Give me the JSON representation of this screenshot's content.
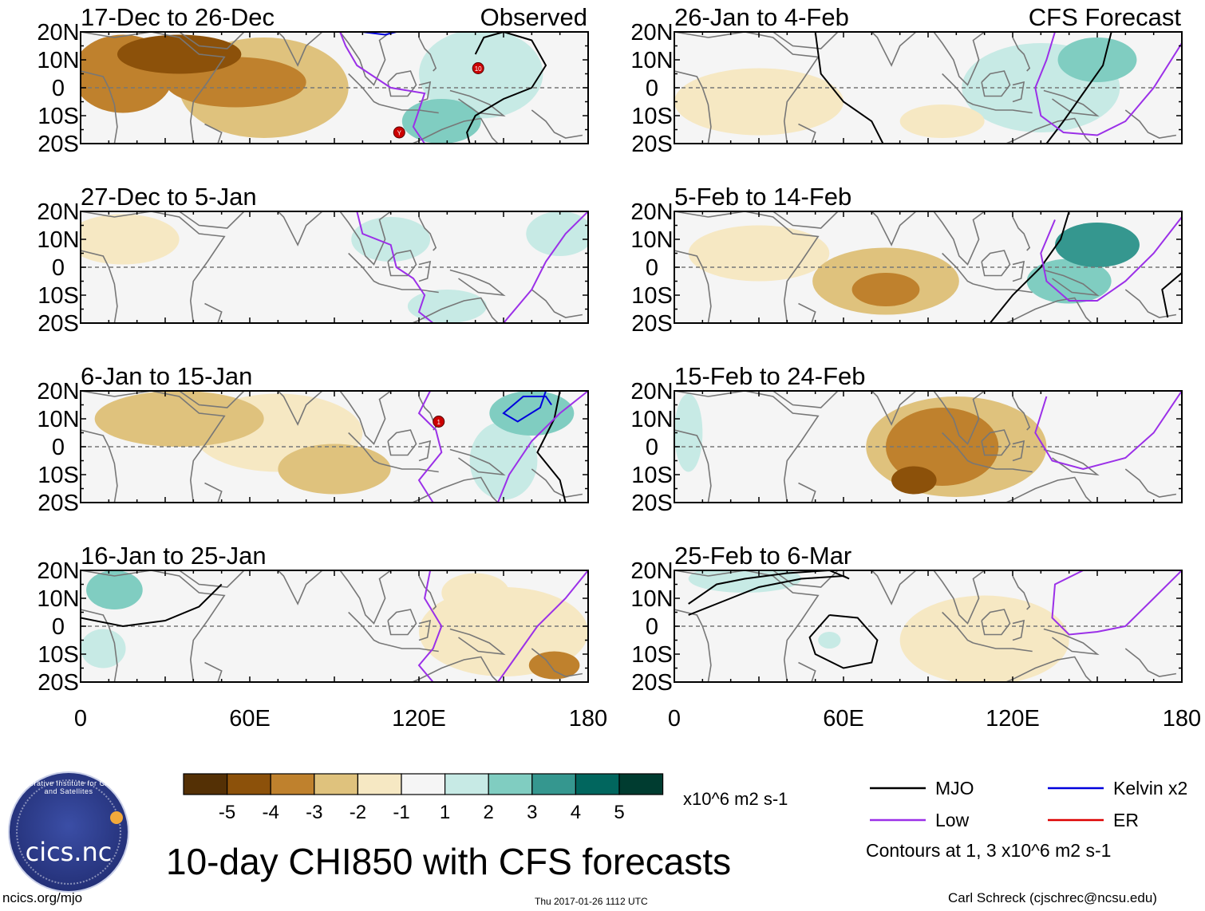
{
  "chart_data": {
    "type": "heatmap",
    "title": "10-day CHI850 with CFS forecasts",
    "variable": "CHI850",
    "units": "x10^6 m2 s-1",
    "lat_ticks": [
      "20N",
      "10N",
      "0",
      "10S",
      "20S"
    ],
    "lon_ticks": [
      "0",
      "60E",
      "120E",
      "180"
    ],
    "lat_range": [
      -20,
      20
    ],
    "lon_range": [
      0,
      180
    ],
    "panels": [
      {
        "period": "17-Dec to 26-Dec",
        "source": "Observed",
        "label": "Observed",
        "blobs": [
          {
            "lon": 35,
            "lat": 12,
            "value": -4.0,
            "rlon": 22,
            "rlat": 7
          },
          {
            "lon": 15,
            "lat": 5,
            "value": -3.0,
            "rlon": 18,
            "rlat": 14
          },
          {
            "lon": 55,
            "lat": 2,
            "value": -3.0,
            "rlon": 25,
            "rlat": 9
          },
          {
            "lon": 65,
            "lat": 0,
            "value": -2.0,
            "rlon": 30,
            "rlat": 18
          },
          {
            "lon": 142,
            "lat": 5,
            "value": 1.5,
            "rlon": 22,
            "rlat": 16
          },
          {
            "lon": 128,
            "lat": -12,
            "value": 2.5,
            "rlon": 14,
            "rlat": 8
          }
        ],
        "contours": [
          {
            "kind": "MJO",
            "lon": [
              140,
              143,
              150,
              160,
              165,
              160,
              150,
              140,
              137,
              138
            ],
            "lat": [
              12,
              18,
              20,
              17,
              8,
              0,
              -4,
              -10,
              -16,
              -20
            ]
          },
          {
            "kind": "Low",
            "lon": [
              92,
              94,
              98,
              110,
              122,
              120,
              118,
              122
            ],
            "lat": [
              20,
              15,
              8,
              0,
              -2,
              -8,
              -14,
              -20
            ]
          },
          {
            "kind": "Kelvin",
            "lon": [
              100,
              108,
              112
            ],
            "lat": [
              20,
              19,
              20
            ]
          }
        ],
        "storms": [
          {
            "lon": 141,
            "lat": 7,
            "label": "10"
          },
          {
            "lon": 113,
            "lat": -16,
            "label": "Y"
          }
        ]
      },
      {
        "period": "27-Dec to 5-Jan",
        "source": "Observed",
        "label": "",
        "blobs": [
          {
            "lon": 15,
            "lat": 10,
            "value": -1.5,
            "rlon": 20,
            "rlat": 9
          },
          {
            "lon": 110,
            "lat": 10,
            "value": 1.5,
            "rlon": 14,
            "rlat": 8
          },
          {
            "lon": 130,
            "lat": -14,
            "value": 1.5,
            "rlon": 14,
            "rlat": 6
          },
          {
            "lon": 170,
            "lat": 12,
            "value": 1.5,
            "rlon": 12,
            "rlat": 8
          }
        ],
        "contours": [
          {
            "kind": "Low",
            "lon": [
              98,
              100,
              110,
              112,
              118,
              122,
              120,
              125
            ],
            "lat": [
              20,
              12,
              8,
              0,
              -4,
              -10,
              -16,
              -20
            ]
          },
          {
            "kind": "Low",
            "lon": [
              180,
              172,
              165,
              160,
              150
            ],
            "lat": [
              20,
              12,
              2,
              -8,
              -20
            ]
          }
        ],
        "storms": []
      },
      {
        "period": "6-Jan to 15-Jan",
        "source": "Observed",
        "label": "",
        "blobs": [
          {
            "lon": 35,
            "lat": 10,
            "value": -2.0,
            "rlon": 30,
            "rlat": 10
          },
          {
            "lon": 70,
            "lat": 5,
            "value": -1.5,
            "rlon": 30,
            "rlat": 14
          },
          {
            "lon": 90,
            "lat": -8,
            "value": -2.0,
            "rlon": 20,
            "rlat": 9
          },
          {
            "lon": 160,
            "lat": 12,
            "value": 2.5,
            "rlon": 15,
            "rlat": 8
          },
          {
            "lon": 150,
            "lat": -5,
            "value": 1.5,
            "rlon": 12,
            "rlat": 14
          }
        ],
        "contours": [
          {
            "kind": "Kelvin",
            "lon": [
              165,
              163,
              155,
              150,
              157,
              165,
              167
            ],
            "lat": [
              20,
              14,
              9,
              12,
              18,
              18,
              15
            ]
          },
          {
            "kind": "MJO",
            "lon": [
              170,
              168,
              162,
              170,
              172
            ],
            "lat": [
              20,
              10,
              -2,
              -12,
              -20
            ]
          },
          {
            "kind": "Low",
            "lon": [
              124,
              120,
              126,
              128,
              120,
              125
            ],
            "lat": [
              20,
              12,
              6,
              -2,
              -12,
              -20
            ]
          },
          {
            "kind": "Low",
            "lon": [
              180,
              170,
              160,
              152,
              148
            ],
            "lat": [
              20,
              12,
              2,
              -10,
              -20
            ]
          }
        ],
        "storms": [
          {
            "lon": 127,
            "lat": 9,
            "label": "1"
          }
        ]
      },
      {
        "period": "16-Jan to 25-Jan",
        "source": "Observed",
        "label": "",
        "blobs": [
          {
            "lon": 12,
            "lat": 13,
            "value": 2.5,
            "rlon": 10,
            "rlat": 7
          },
          {
            "lon": 8,
            "lat": -8,
            "value": 1.5,
            "rlon": 8,
            "rlat": 7
          },
          {
            "lon": 150,
            "lat": -2,
            "value": -1.5,
            "rlon": 30,
            "rlat": 16
          },
          {
            "lon": 168,
            "lat": -14,
            "value": -3.0,
            "rlon": 9,
            "rlat": 5
          },
          {
            "lon": 140,
            "lat": 12,
            "value": -1.5,
            "rlon": 12,
            "rlat": 7
          }
        ],
        "contours": [
          {
            "kind": "MJO",
            "lon": [
              0,
              15,
              30,
              42,
              50
            ],
            "lat": [
              3,
              0,
              2,
              7,
              15
            ]
          },
          {
            "kind": "Low",
            "lon": [
              124,
              122,
              128,
              125,
              120,
              125
            ],
            "lat": [
              20,
              10,
              0,
              -8,
              -14,
              -20
            ]
          },
          {
            "kind": "Low",
            "lon": [
              180,
              172,
              162,
              155,
              148
            ],
            "lat": [
              20,
              10,
              0,
              -10,
              -20
            ]
          }
        ],
        "storms": []
      },
      {
        "period": "26-Jan to 4-Feb",
        "source": "CFS Forecast",
        "label": "CFS Forecast",
        "blobs": [
          {
            "lon": 150,
            "lat": 10,
            "value": 2.5,
            "rlon": 14,
            "rlat": 8
          },
          {
            "lon": 130,
            "lat": 0,
            "value": 1.5,
            "rlon": 28,
            "rlat": 16
          },
          {
            "lon": 30,
            "lat": -5,
            "value": -1.5,
            "rlon": 30,
            "rlat": 12
          },
          {
            "lon": 95,
            "lat": -12,
            "value": -1.5,
            "rlon": 15,
            "rlat": 6
          }
        ],
        "contours": [
          {
            "kind": "MJO",
            "lon": [
              50,
              52,
              60,
              70,
              74
            ],
            "lat": [
              20,
              5,
              -5,
              -12,
              -20
            ]
          },
          {
            "kind": "MJO",
            "lon": [
              155,
              152,
              145,
              138,
              132
            ],
            "lat": [
              20,
              8,
              -2,
              -12,
              -20
            ]
          },
          {
            "kind": "Low",
            "lon": [
              135,
              132,
              128,
              130,
              138,
              150,
              160,
              170,
              180
            ],
            "lat": [
              20,
              10,
              0,
              -10,
              -16,
              -17,
              -12,
              0,
              16
            ]
          }
        ],
        "storms": []
      },
      {
        "period": "5-Feb to 14-Feb",
        "source": "CFS Forecast",
        "label": "",
        "blobs": [
          {
            "lon": 75,
            "lat": -8,
            "value": -3.0,
            "rlon": 12,
            "rlat": 6
          },
          {
            "lon": 75,
            "lat": -5,
            "value": -2.0,
            "rlon": 26,
            "rlat": 12
          },
          {
            "lon": 30,
            "lat": 5,
            "value": -1.5,
            "rlon": 25,
            "rlat": 10
          },
          {
            "lon": 150,
            "lat": 8,
            "value": 3.0,
            "rlon": 15,
            "rlat": 8
          },
          {
            "lon": 140,
            "lat": -5,
            "value": 2.0,
            "rlon": 15,
            "rlat": 8
          }
        ],
        "contours": [
          {
            "kind": "MJO",
            "lon": [
              140,
              137,
              130,
              120,
              112
            ],
            "lat": [
              20,
              10,
              0,
              -10,
              -20
            ]
          },
          {
            "kind": "MJO",
            "lon": [
              180,
              173,
              175
            ],
            "lat": [
              -2,
              -8,
              -18
            ]
          },
          {
            "kind": "Low",
            "lon": [
              135,
              130,
              132,
              140,
              150,
              160,
              170,
              180
            ],
            "lat": [
              17,
              5,
              -5,
              -12,
              -12,
              -5,
              5,
              18
            ]
          }
        ],
        "storms": []
      },
      {
        "period": "15-Feb to 24-Feb",
        "source": "CFS Forecast",
        "label": "",
        "blobs": [
          {
            "lon": 85,
            "lat": -12,
            "value": -4.0,
            "rlon": 8,
            "rlat": 5
          },
          {
            "lon": 95,
            "lat": 0,
            "value": -3.0,
            "rlon": 20,
            "rlat": 14
          },
          {
            "lon": 100,
            "lat": 0,
            "value": -2.0,
            "rlon": 32,
            "rlat": 18
          },
          {
            "lon": 5,
            "lat": 5,
            "value": 1.5,
            "rlon": 5,
            "rlat": 14
          }
        ],
        "contours": [
          {
            "kind": "Low",
            "lon": [
              132,
              128,
              134,
              145,
              160,
              170,
              180
            ],
            "lat": [
              18,
              5,
              -5,
              -8,
              -4,
              5,
              20
            ]
          }
        ],
        "storms": []
      },
      {
        "period": "25-Feb to 6-Mar",
        "source": "CFS Forecast",
        "label": "",
        "blobs": [
          {
            "lon": 25,
            "lat": 17,
            "value": 1.5,
            "rlon": 20,
            "rlat": 5
          },
          {
            "lon": 110,
            "lat": -5,
            "value": -1.5,
            "rlon": 30,
            "rlat": 16
          },
          {
            "lon": 55,
            "lat": -5,
            "value": 1.5,
            "rlon": 4,
            "rlat": 3
          }
        ],
        "contours": [
          {
            "kind": "MJO",
            "lon": [
              5,
              15,
              25,
              40,
              55,
              62,
              60,
              45,
              30,
              15,
              5
            ],
            "lat": [
              8,
              15,
              17,
              19,
              20,
              17,
              18,
              17,
              14,
              8,
              4
            ]
          },
          {
            "kind": "MJO",
            "lon": [
              55,
              65,
              72,
              70,
              60,
              50,
              48,
              55
            ],
            "lat": [
              4,
              3,
              -5,
              -13,
              -15,
              -10,
              -4,
              4
            ]
          },
          {
            "kind": "Low",
            "lon": [
              145,
              135,
              134,
              140,
              150,
              160,
              170,
              180
            ],
            "lat": [
              20,
              15,
              3,
              -3,
              -2,
              0,
              10,
              20
            ]
          }
        ],
        "storms": []
      }
    ],
    "colorbar": {
      "levels": [
        "-5",
        "-4",
        "-3",
        "-2",
        "-1",
        "1",
        "2",
        "3",
        "4",
        "5"
      ],
      "colors": [
        "#543005",
        "#8c510a",
        "#bf812d",
        "#dfc27d",
        "#f6e8c3",
        "#f5f5f5",
        "#c7eae5",
        "#80cdc1",
        "#35978f",
        "#01665e",
        "#003c30"
      ]
    },
    "legend": [
      {
        "label": "MJO",
        "color": "#000000"
      },
      {
        "label": "Kelvin x2",
        "color": "#0000dd"
      },
      {
        "label": "Low",
        "color": "#9b30e8"
      },
      {
        "label": "ER",
        "color": "#dd0000"
      }
    ],
    "contour_note": "Contours at 1, 3 x10^6 m2 s-1"
  },
  "footer": {
    "left": "ncics.org/mjo",
    "center": "Thu 2017-01-26 1112 UTC",
    "right": "Carl Schreck (cjschrec@ncsu.edu)"
  },
  "logo": {
    "text": "cics.nc",
    "ring": "Cooperative Institute for Climate and Satellites"
  },
  "colors": {
    "land": "#777777",
    "zero_line": "#777777"
  }
}
